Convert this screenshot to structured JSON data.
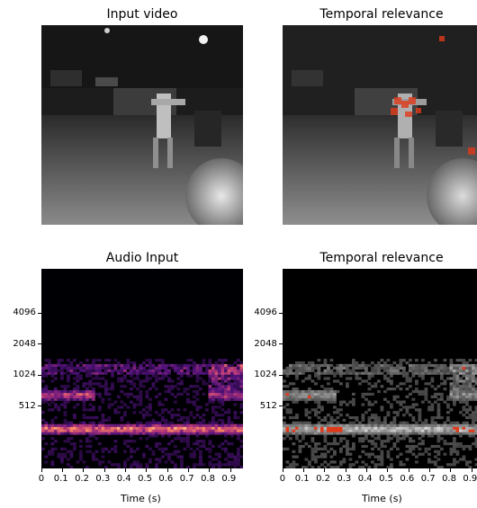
{
  "panels": {
    "video_input_title": "Input video",
    "video_relevance_title": "Temporal relevance",
    "audio_input_title": "Audio Input",
    "audio_relevance_title": "Temporal relevance"
  },
  "chart_data": [
    {
      "type": "image",
      "title": "Input video",
      "colormap": "gray",
      "axes": "off"
    },
    {
      "type": "image",
      "title": "Temporal relevance",
      "colormap": "gray",
      "overlay_color": "#e03a1a",
      "axes": "off"
    },
    {
      "type": "heatmap",
      "title": "Audio Input",
      "colormap": "magma",
      "xlabel": "Time (s)",
      "ylabel": "",
      "x_ticks": [
        "0",
        "0.1",
        "0.2",
        "0.3",
        "0.4",
        "0.5",
        "0.6",
        "0.7",
        "0.8",
        "0.9"
      ],
      "x_tick_values": [
        0,
        0.1,
        0.2,
        0.3,
        0.4,
        0.5,
        0.6,
        0.7,
        0.8,
        0.9
      ],
      "xlim": [
        0,
        0.96
      ],
      "y_ticks": [
        "512",
        "1024",
        "2048",
        "4096"
      ],
      "y_scale": "log2",
      "bands": [
        {
          "center_hz": 300,
          "x_range": [
            0.0,
            0.96
          ],
          "intensity": 0.75
        },
        {
          "center_hz": 640,
          "x_range": [
            0.0,
            0.26
          ],
          "intensity": 0.55
        },
        {
          "center_hz": 640,
          "x_range": [
            0.8,
            0.96
          ],
          "intensity": 0.45
        }
      ]
    },
    {
      "type": "heatmap",
      "title": "Temporal relevance",
      "colormap": "gray",
      "overlay_color": "#e03a1a",
      "xlabel": "Time (s)",
      "ylabel": "",
      "x_ticks": [
        "0",
        "0.1",
        "0.2",
        "0.3",
        "0.4",
        "0.5",
        "0.6",
        "0.7",
        "0.8",
        "0.9"
      ],
      "x_tick_values": [
        0,
        0.1,
        0.2,
        0.3,
        0.4,
        0.5,
        0.6,
        0.7,
        0.8,
        0.9
      ],
      "xlim": [
        0,
        0.96
      ],
      "y_ticks": [
        "512",
        "1024",
        "2048",
        "4096"
      ],
      "y_scale": "log2"
    }
  ]
}
